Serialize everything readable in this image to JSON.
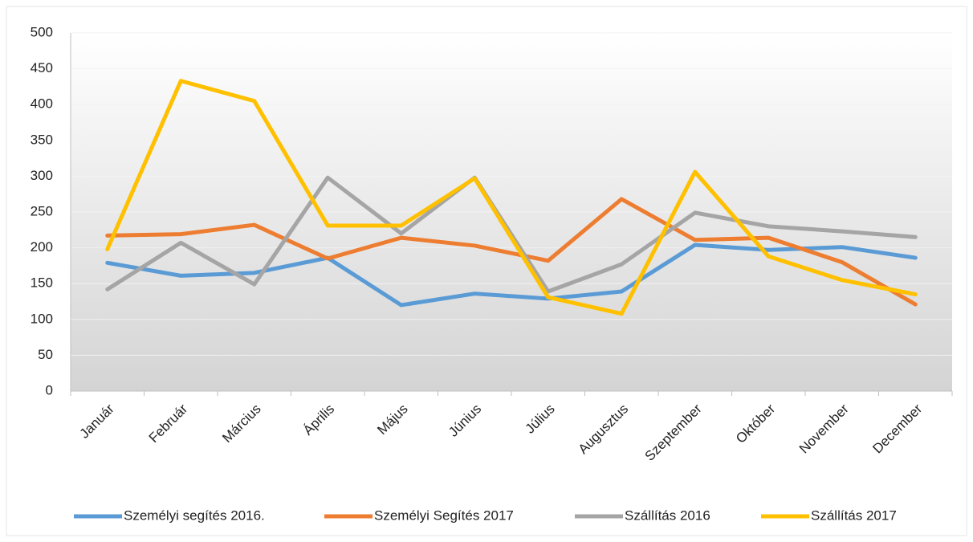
{
  "chart_data": {
    "type": "line",
    "categories": [
      "Január",
      "Február",
      "Március",
      "Április",
      "Május",
      "Június",
      "Július",
      "Augusztus",
      "Szeptember",
      "Október",
      "November",
      "December"
    ],
    "series": [
      {
        "name": "Személyi segítés 2016.",
        "color": "#5b9bd5",
        "values": [
          179,
          161,
          165,
          186,
          120,
          136,
          129,
          139,
          204,
          197,
          201,
          186
        ]
      },
      {
        "name": "Személyi Segítés 2017",
        "color": "#ed7d31",
        "values": [
          217,
          219,
          232,
          185,
          214,
          203,
          182,
          268,
          211,
          214,
          180,
          121
        ]
      },
      {
        "name": "Szállítás 2016",
        "color": "#a5a5a5",
        "values": [
          142,
          207,
          149,
          298,
          220,
          298,
          139,
          177,
          249,
          230,
          223,
          215
        ]
      },
      {
        "name": "Szállítás 2017",
        "color": "#ffc000",
        "values": [
          198,
          433,
          405,
          231,
          231,
          297,
          131,
          108,
          306,
          188,
          155,
          135
        ]
      }
    ],
    "ylim": [
      0,
      500
    ],
    "yticks": [
      0,
      50,
      100,
      150,
      200,
      250,
      300,
      350,
      400,
      450,
      500
    ],
    "grid": true,
    "legend": "bottom"
  }
}
